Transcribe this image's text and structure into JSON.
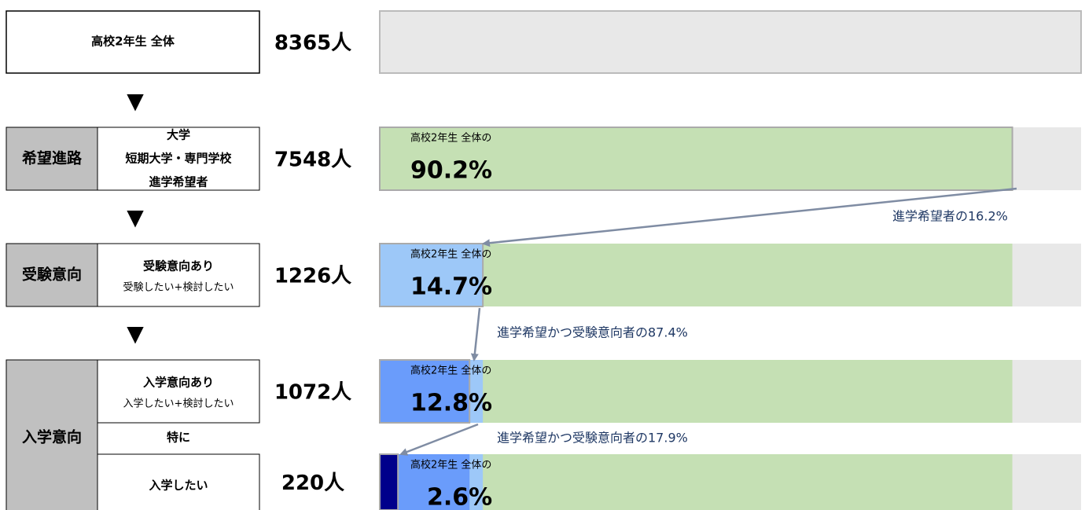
{
  "xlim": [
    0,
    100
  ],
  "marker": "▼",
  "colors": {
    "track": "#e8e8e8",
    "stages": [
      "#c5e0b4",
      "#9dc8f8",
      "#6a9cfb",
      "#00008b"
    ],
    "arrow": "#7f8ca3",
    "note": "#1f3864"
  },
  "rows": [
    {
      "label": "高校2年生 全体",
      "count": "8365人"
    },
    {
      "stage": "希望進路",
      "lines": [
        "大学",
        "短期大学・専門学校",
        "進学希望者"
      ],
      "count": "7548人",
      "share_label": "高校2年生 全体の",
      "percent": 90.2,
      "percent_label": "90.2%"
    },
    {
      "stage": "受験意向",
      "lines": [
        "受験意向あり",
        "受験したい+検討したい"
      ],
      "count": "1226人",
      "share_label": "高校2年生 全体の",
      "percent": 14.7,
      "percent_label": "14.7%"
    },
    {
      "stage": "入学意向",
      "lines": [
        "入学意向あり",
        "入学したい+検討したい"
      ],
      "count": "1072人",
      "share_label": "高校2年生 全体の",
      "percent": 12.8,
      "percent_label": "12.8%"
    },
    {
      "lines": [
        "特に",
        "入学したい"
      ],
      "count": "220人",
      "share_label": "高校2年生 全体の",
      "percent": 2.6,
      "percent_label": "2.6%"
    }
  ],
  "notes": [
    "進学希望者の16.2%",
    "進学希望かつ受験意向者の87.4%",
    "進学希望かつ受験意向者の17.9%"
  ]
}
